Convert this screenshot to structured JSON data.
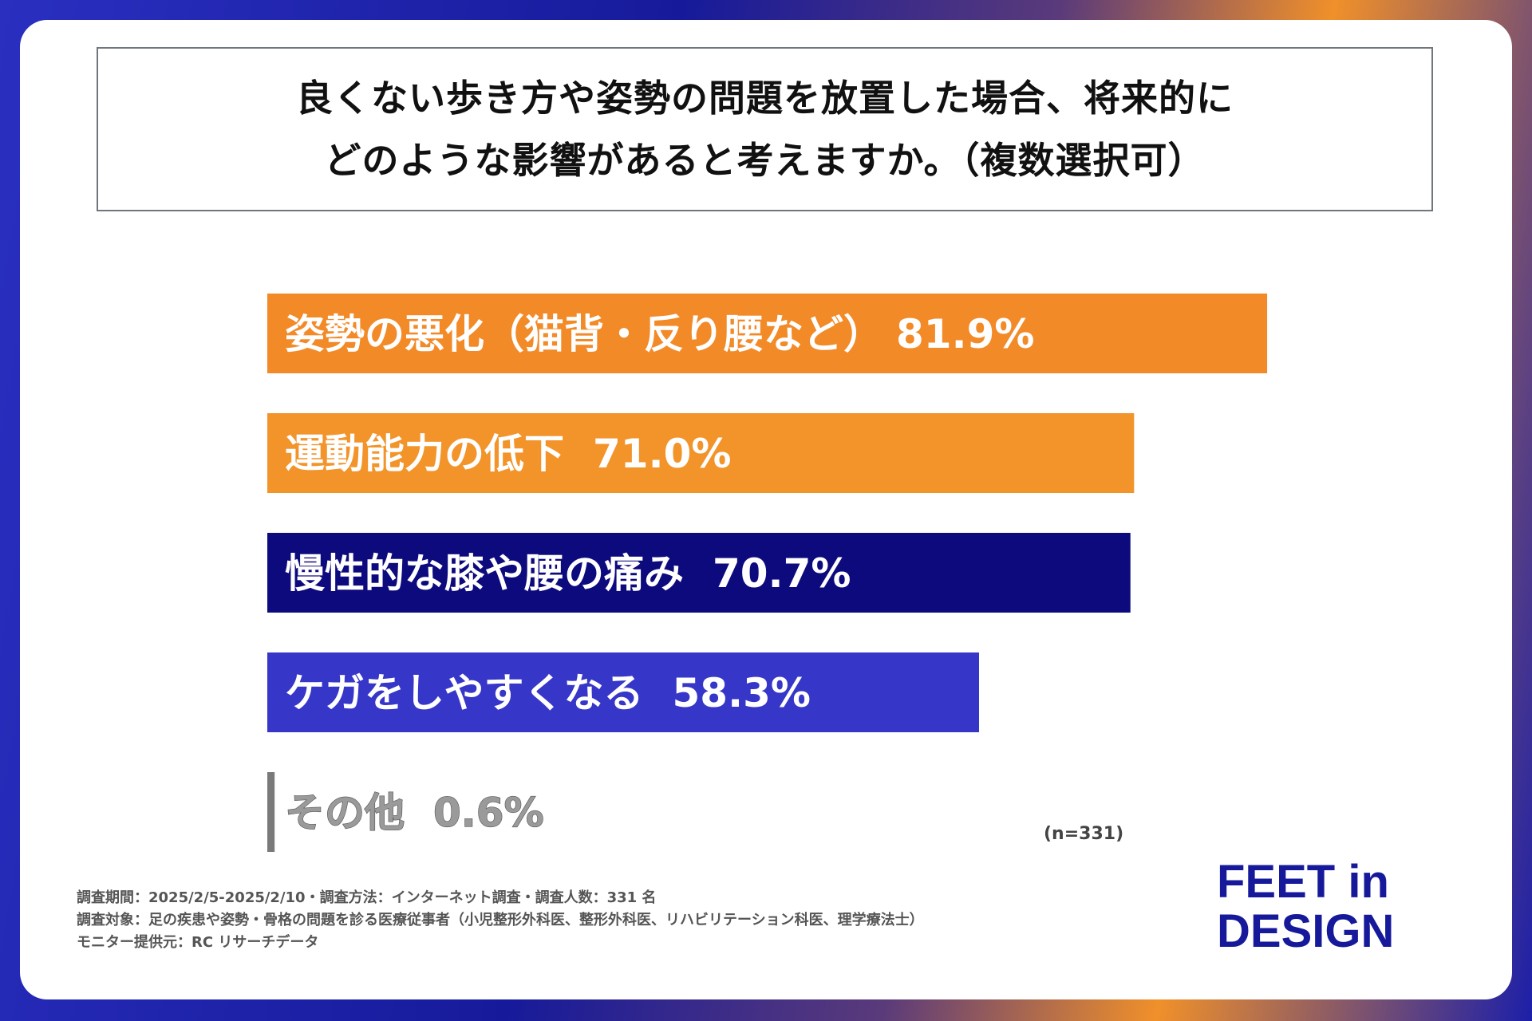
{
  "question": {
    "line1": "良くない歩き方や姿勢の問題を放置した場合、将来的に",
    "line2": "どのような影響があると考えますか。（複数選択可）"
  },
  "chart_data": {
    "type": "bar",
    "orientation": "horizontal",
    "title": "良くない歩き方や姿勢の問題を放置した場合、将来的にどのような影響があると考えますか。（複数選択可）",
    "categories": [
      "姿勢の悪化（猫背・反り腰など）",
      "運動能力の低下",
      "慢性的な膝や腰の痛み",
      "ケガをしやすくなる",
      "その他"
    ],
    "values": [
      81.9,
      71.0,
      70.7,
      58.3,
      0.6
    ],
    "value_labels": [
      "81.9%",
      "71.0%",
      "70.7%",
      "58.3%",
      "0.6%"
    ],
    "colors": [
      "#f28a28",
      "#f2942a",
      "#0d0a7e",
      "#3636c8",
      "#7a7a7a"
    ],
    "xlim": [
      0,
      100
    ],
    "sample_size": "(n=331)"
  },
  "footer": {
    "line1": "調査期間：2025/2/5-2025/2/10・調査方法：インターネット調査・調査人数：331 名",
    "line2": "調査対象：足の疾患や姿勢・骨格の問題を診る医療従事者（小児整形外科医、整形外科医、リハビリテーション科医、理学療法士）",
    "line3": "モニター提供元：RC リサーチデータ"
  },
  "logo": {
    "line1": "FEET in",
    "line2": "DESIGN"
  }
}
